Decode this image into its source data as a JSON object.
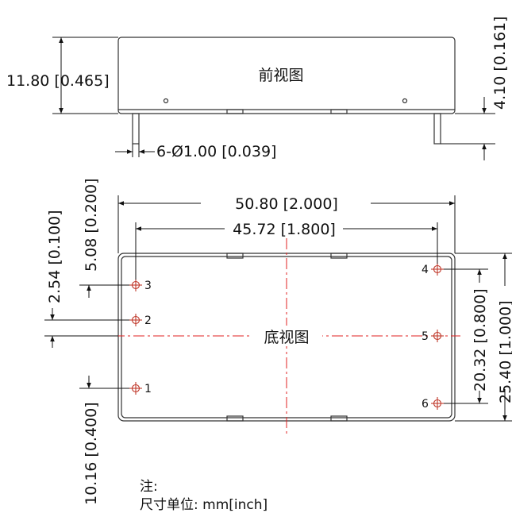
{
  "front_view": {
    "title": "前视图",
    "height_dim": "11.80 [0.465]",
    "pin_length_dim": "4.10 [0.161]",
    "pin_diameter_dim": "6-Ø1.00 [0.039]"
  },
  "bottom_view": {
    "title": "底视图",
    "overall_width_dim": "50.80 [2.000]",
    "pin_row_width_dim": "45.72 [1.800]",
    "overall_height_dim": "25.40 [1.000]",
    "right_pin_span_dim": "20.32 [0.800]",
    "left_pin_span_dim": "10.16 [0.400]",
    "top_offset_dim": "5.08 [0.200]",
    "pin2_offset_dim": "2.54 [0.100]",
    "pins": [
      {
        "label": "1"
      },
      {
        "label": "2"
      },
      {
        "label": "3"
      },
      {
        "label": "4"
      },
      {
        "label": "5"
      },
      {
        "label": "6"
      }
    ]
  },
  "notes": {
    "heading": "注:",
    "unit_line": "尺寸单位: mm[inch]"
  },
  "colors": {
    "outline": "#333333",
    "centerline": "#e02020",
    "pin": "#c0392b"
  }
}
